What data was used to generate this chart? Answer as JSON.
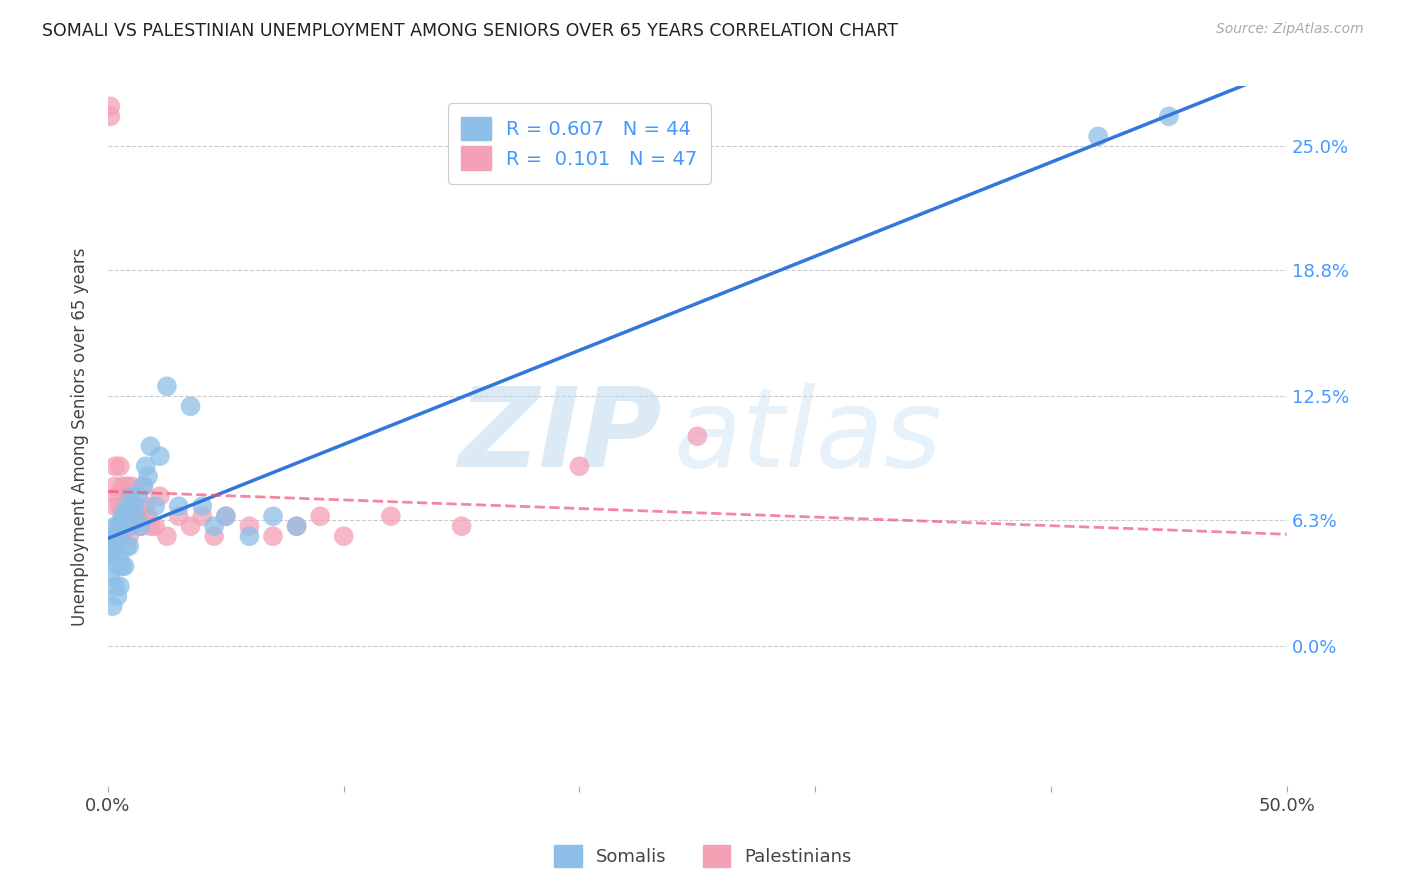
{
  "title": "SOMALI VS PALESTINIAN UNEMPLOYMENT AMONG SENIORS OVER 65 YEARS CORRELATION CHART",
  "source": "Source: ZipAtlas.com",
  "ylabel": "Unemployment Among Seniors over 65 years",
  "xlim": [
    0.0,
    0.5
  ],
  "ylim": [
    -0.07,
    0.28
  ],
  "xticks": [
    0.0,
    0.1,
    0.2,
    0.3,
    0.4,
    0.5
  ],
  "xticklabels": [
    "0.0%",
    "",
    "",
    "",
    "",
    "50.0%"
  ],
  "yticks_right": [
    0.25,
    0.188,
    0.125,
    0.063,
    0.0
  ],
  "yticklabels_right": [
    "25.0%",
    "18.8%",
    "12.5%",
    "6.3%",
    "0.0%"
  ],
  "grid_color": "#cccccc",
  "watermark_zip": "ZIP",
  "watermark_atlas": "atlas",
  "legend_R_somali": "0.607",
  "legend_N_somali": "44",
  "legend_R_pales": "0.101",
  "legend_N_pales": "47",
  "somali_color": "#8dbfe8",
  "pales_color": "#f4a0b5",
  "somali_line_color": "#3377dd",
  "pales_line_color": "#ee5577",
  "bg_color": "#ffffff",
  "title_color": "#222222",
  "tick_color": "#444444",
  "right_tick_color": "#4499ff",
  "somali_x": [
    0.001,
    0.001,
    0.002,
    0.002,
    0.002,
    0.003,
    0.003,
    0.003,
    0.004,
    0.004,
    0.004,
    0.005,
    0.005,
    0.005,
    0.006,
    0.006,
    0.007,
    0.007,
    0.008,
    0.008,
    0.009,
    0.01,
    0.01,
    0.011,
    0.012,
    0.013,
    0.014,
    0.015,
    0.016,
    0.017,
    0.018,
    0.02,
    0.022,
    0.025,
    0.03,
    0.035,
    0.04,
    0.045,
    0.05,
    0.06,
    0.07,
    0.08,
    0.42,
    0.45
  ],
  "somali_y": [
    0.035,
    0.045,
    0.02,
    0.05,
    0.055,
    0.03,
    0.045,
    0.06,
    0.025,
    0.04,
    0.055,
    0.03,
    0.045,
    0.06,
    0.04,
    0.065,
    0.04,
    0.065,
    0.05,
    0.07,
    0.05,
    0.06,
    0.075,
    0.07,
    0.065,
    0.075,
    0.06,
    0.08,
    0.09,
    0.085,
    0.1,
    0.07,
    0.095,
    0.13,
    0.07,
    0.12,
    0.07,
    0.06,
    0.065,
    0.055,
    0.065,
    0.06,
    0.255,
    0.265
  ],
  "pales_x": [
    0.001,
    0.001,
    0.002,
    0.002,
    0.003,
    0.003,
    0.003,
    0.004,
    0.004,
    0.005,
    0.005,
    0.005,
    0.006,
    0.006,
    0.007,
    0.007,
    0.008,
    0.008,
    0.009,
    0.009,
    0.01,
    0.01,
    0.011,
    0.012,
    0.013,
    0.014,
    0.015,
    0.016,
    0.017,
    0.018,
    0.02,
    0.022,
    0.025,
    0.03,
    0.035,
    0.04,
    0.045,
    0.05,
    0.06,
    0.07,
    0.08,
    0.09,
    0.1,
    0.12,
    0.15,
    0.2,
    0.25
  ],
  "pales_y": [
    0.265,
    0.27,
    0.05,
    0.055,
    0.07,
    0.08,
    0.09,
    0.06,
    0.075,
    0.055,
    0.07,
    0.09,
    0.06,
    0.08,
    0.07,
    0.065,
    0.06,
    0.08,
    0.055,
    0.075,
    0.065,
    0.08,
    0.065,
    0.07,
    0.065,
    0.06,
    0.08,
    0.07,
    0.065,
    0.06,
    0.06,
    0.075,
    0.055,
    0.065,
    0.06,
    0.065,
    0.055,
    0.065,
    0.06,
    0.055,
    0.06,
    0.065,
    0.055,
    0.065,
    0.06,
    0.09,
    0.105
  ]
}
